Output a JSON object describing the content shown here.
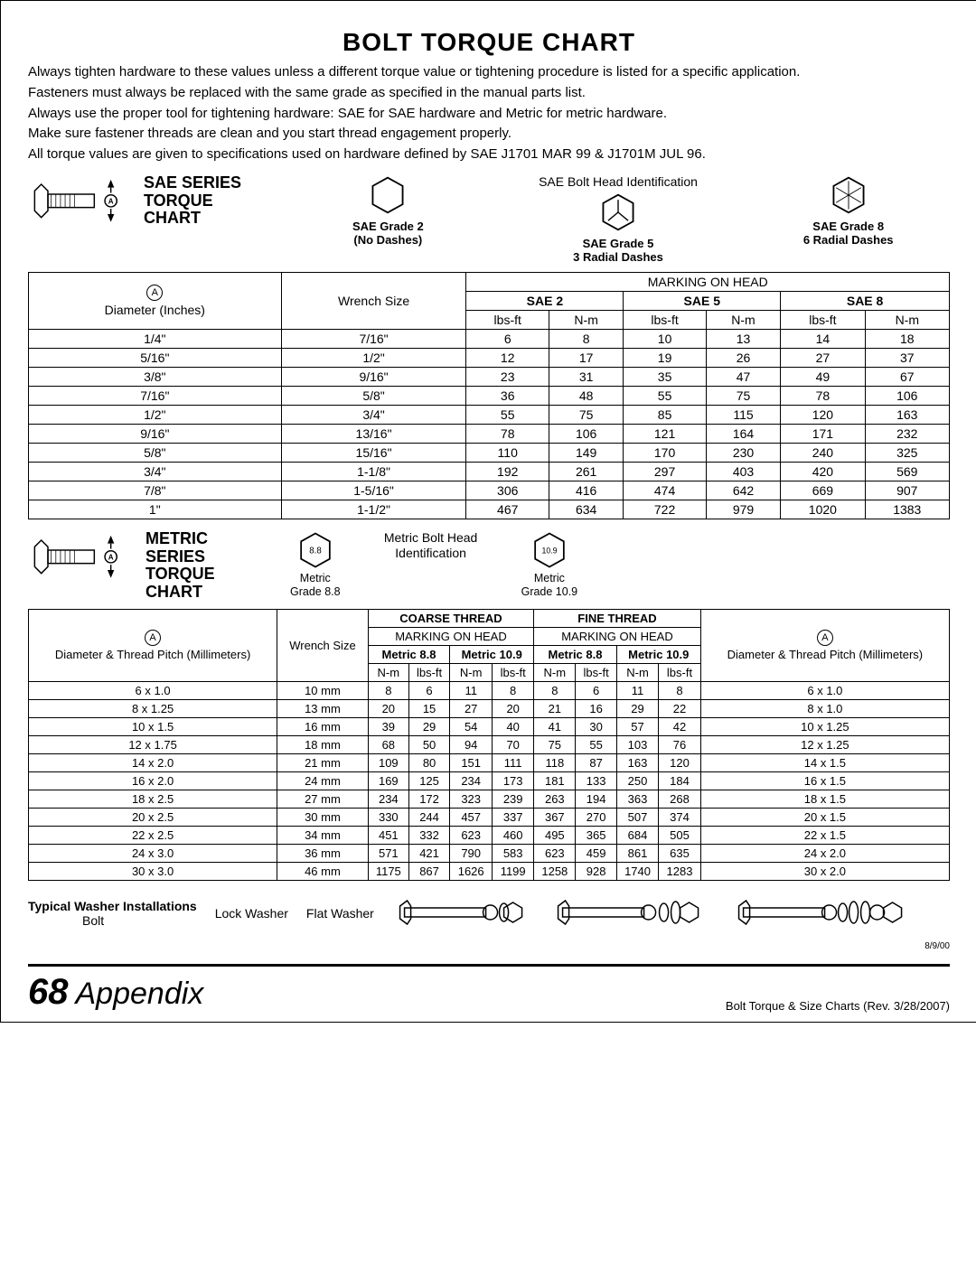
{
  "title": "BOLT TORQUE CHART",
  "intro": [
    "Always tighten hardware to these values unless a different torque value or tightening procedure is listed for a specific application.",
    "Fasteners must always be replaced with the same grade as specified in the manual parts list.",
    "Always use the proper tool for tightening hardware: SAE for SAE hardware and Metric for metric hardware.",
    "Make sure fastener threads are clean and you start thread engagement properly.",
    "All torque values are given to specifications used on hardware defined by SAE J1701 MAR 99 & J1701M JUL 96."
  ],
  "sae": {
    "series_title_l1": "SAE SERIES",
    "series_title_l2": "TORQUE",
    "series_title_l3": "CHART",
    "ident_title": "SAE Bolt Head Identification",
    "grades": [
      {
        "name": "SAE Grade 2",
        "sub": "(No Dashes)"
      },
      {
        "name": "SAE Grade 5",
        "sub": "3 Radial Dashes"
      },
      {
        "name": "SAE Grade 8",
        "sub": "6 Radial Dashes"
      }
    ],
    "col_diameter": "Diameter (Inches)",
    "col_wrench": "Wrench Size",
    "marking": "MARKING ON HEAD",
    "sae2": "SAE 2",
    "sae5": "SAE 5",
    "sae8": "SAE 8",
    "lbsft": "lbs-ft",
    "nm": "N-m",
    "rows": [
      [
        "1/4\"",
        "7/16\"",
        "6",
        "8",
        "10",
        "13",
        "14",
        "18"
      ],
      [
        "5/16\"",
        "1/2\"",
        "12",
        "17",
        "19",
        "26",
        "27",
        "37"
      ],
      [
        "3/8\"",
        "9/16\"",
        "23",
        "31",
        "35",
        "47",
        "49",
        "67"
      ],
      [
        "7/16\"",
        "5/8\"",
        "36",
        "48",
        "55",
        "75",
        "78",
        "106"
      ],
      [
        "1/2\"",
        "3/4\"",
        "55",
        "75",
        "85",
        "115",
        "120",
        "163"
      ],
      [
        "9/16\"",
        "13/16\"",
        "78",
        "106",
        "121",
        "164",
        "171",
        "232"
      ],
      [
        "5/8\"",
        "15/16\"",
        "110",
        "149",
        "170",
        "230",
        "240",
        "325"
      ],
      [
        "3/4\"",
        "1-1/8\"",
        "192",
        "261",
        "297",
        "403",
        "420",
        "569"
      ],
      [
        "7/8\"",
        "1-5/16\"",
        "306",
        "416",
        "474",
        "642",
        "669",
        "907"
      ],
      [
        "1\"",
        "1-1/2\"",
        "467",
        "634",
        "722",
        "979",
        "1020",
        "1383"
      ]
    ]
  },
  "metric": {
    "series_title_l1": "METRIC SERIES",
    "series_title_l2": "TORQUE",
    "series_title_l3": "CHART",
    "ident_title": "Metric Bolt Head Identification",
    "grades": [
      {
        "num": "8.8",
        "name": "Metric",
        "sub": "Grade 8.8"
      },
      {
        "num": "10.9",
        "name": "Metric",
        "sub": "Grade 10.9"
      }
    ],
    "col_diameter": "Diameter & Thread Pitch (Millimeters)",
    "col_wrench": "Wrench Size",
    "coarse": "COARSE THREAD",
    "fine": "FINE THREAD",
    "marking": "MARKING ON HEAD",
    "m88": "Metric 8.8",
    "m109": "Metric 10.9",
    "nm": "N-m",
    "lbsft": "lbs-ft",
    "rows": [
      [
        "6 x 1.0",
        "10 mm",
        "8",
        "6",
        "11",
        "8",
        "8",
        "6",
        "11",
        "8",
        "6 x 1.0"
      ],
      [
        "8 x 1.25",
        "13 mm",
        "20",
        "15",
        "27",
        "20",
        "21",
        "16",
        "29",
        "22",
        "8 x 1.0"
      ],
      [
        "10 x 1.5",
        "16 mm",
        "39",
        "29",
        "54",
        "40",
        "41",
        "30",
        "57",
        "42",
        "10 x 1.25"
      ],
      [
        "12 x 1.75",
        "18 mm",
        "68",
        "50",
        "94",
        "70",
        "75",
        "55",
        "103",
        "76",
        "12 x 1.25"
      ],
      [
        "14 x 2.0",
        "21 mm",
        "109",
        "80",
        "151",
        "111",
        "118",
        "87",
        "163",
        "120",
        "14 x 1.5"
      ],
      [
        "16 x 2.0",
        "24 mm",
        "169",
        "125",
        "234",
        "173",
        "181",
        "133",
        "250",
        "184",
        "16 x 1.5"
      ],
      [
        "18 x 2.5",
        "27 mm",
        "234",
        "172",
        "323",
        "239",
        "263",
        "194",
        "363",
        "268",
        "18 x 1.5"
      ],
      [
        "20 x 2.5",
        "30 mm",
        "330",
        "244",
        "457",
        "337",
        "367",
        "270",
        "507",
        "374",
        "20 x 1.5"
      ],
      [
        "22 x 2.5",
        "34 mm",
        "451",
        "332",
        "623",
        "460",
        "495",
        "365",
        "684",
        "505",
        "22 x 1.5"
      ],
      [
        "24 x 3.0",
        "36 mm",
        "571",
        "421",
        "790",
        "583",
        "623",
        "459",
        "861",
        "635",
        "24 x 2.0"
      ],
      [
        "30 x 3.0",
        "46 mm",
        "1175",
        "867",
        "1626",
        "1199",
        "1258",
        "928",
        "1740",
        "1283",
        "30 x 2.0"
      ]
    ]
  },
  "washer": {
    "title": "Typical Washer Installations",
    "bolt": "Bolt",
    "lock": "Lock Washer",
    "flat": "Flat Washer",
    "date_small": "8/9/00"
  },
  "footer": {
    "page": "68",
    "section": "Appendix",
    "right": "Bolt Torque & Size Charts (Rev. 3/28/2007)"
  }
}
